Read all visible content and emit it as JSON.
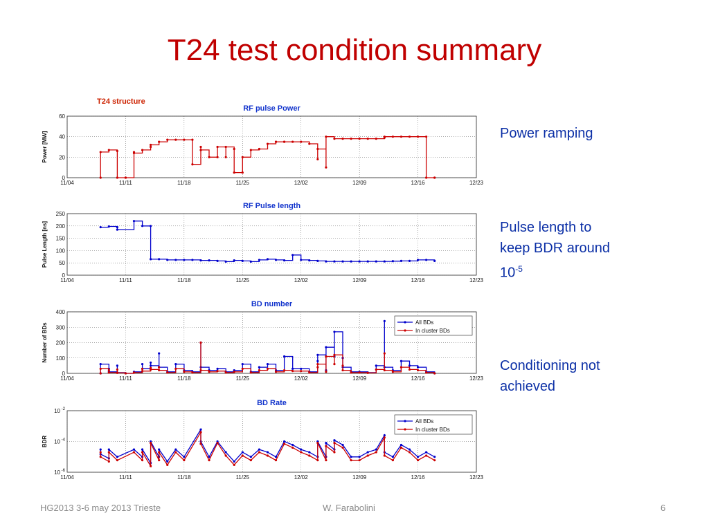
{
  "slide": {
    "title": "T24 test condition summary",
    "structure_label": "T24 structure",
    "notes": {
      "power": "Power ramping",
      "pulse_line1": "Pulse length to",
      "pulse_line2": "keep BDR around",
      "pulse_base": "10",
      "pulse_exp": "-5",
      "cond_line1": "Conditioning not",
      "cond_line2": "achieved"
    },
    "footer": {
      "left": "HG2013 3-6 may 2013 Trieste",
      "center": "W. Farabolini",
      "right": "6"
    }
  },
  "chart_data": [
    {
      "type": "line",
      "title": "RF pulse Power",
      "ylabel": "Power [MW]",
      "xlim": [
        "11/04",
        "12/23"
      ],
      "ylim": [
        0,
        60
      ],
      "yticks": [
        0,
        20,
        40,
        60
      ],
      "xticks": [
        "11/04",
        "11/11",
        "11/18",
        "11/25",
        "12/02",
        "12/09",
        "12/16",
        "12/23"
      ],
      "grid": true,
      "series": [
        {
          "color": "#cc0000",
          "x": [
            "11/08",
            "11/08",
            "11/09",
            "11/10",
            "11/10",
            "11/11",
            "11/11",
            "11/12",
            "11/12",
            "11/13",
            "11/14",
            "11/14",
            "11/15",
            "11/16",
            "11/17",
            "11/18",
            "11/19",
            "11/19",
            "11/20",
            "11/20",
            "11/21",
            "11/22",
            "11/22",
            "11/23",
            "11/23",
            "11/24",
            "11/24",
            "11/25",
            "11/25",
            "11/26",
            "11/27",
            "11/28",
            "11/29",
            "11/29",
            "11/30",
            "11/30",
            "12/01",
            "12/02",
            "12/03",
            "12/04",
            "12/04",
            "12/05",
            "12/05",
            "12/06",
            "12/07",
            "12/08",
            "12/09",
            "12/10",
            "12/11",
            "12/12",
            "12/12",
            "12/13",
            "12/14",
            "12/15",
            "12/16",
            "12/17",
            "12/17",
            "12/18",
            "12/18"
          ],
          "y": [
            0,
            25,
            27,
            26,
            0,
            0,
            0,
            25,
            24,
            27,
            30,
            32,
            35,
            37,
            37,
            37,
            37,
            13,
            30,
            27,
            20,
            20,
            30,
            20,
            30,
            28,
            5,
            5,
            20,
            27,
            28,
            33,
            35,
            35,
            35,
            35,
            35,
            35,
            33,
            18,
            28,
            10,
            40,
            38,
            38,
            38,
            38,
            38,
            38,
            39,
            40,
            40,
            40,
            40,
            40,
            40,
            0,
            0,
            0
          ]
        }
      ]
    },
    {
      "type": "line",
      "title": "RF Pulse length",
      "ylabel": "Pulse Length [ns]",
      "xlim": [
        "11/04",
        "12/23"
      ],
      "ylim": [
        0,
        250
      ],
      "yticks": [
        0,
        50,
        100,
        150,
        200,
        250
      ],
      "xticks": [
        "11/04",
        "11/11",
        "11/18",
        "11/25",
        "12/02",
        "12/09",
        "12/16",
        "12/23"
      ],
      "grid": true,
      "series": [
        {
          "color": "#0000cc",
          "x": [
            "11/08",
            "11/09",
            "11/10",
            "11/10",
            "11/12",
            "11/13",
            "11/14",
            "11/14",
            "11/15",
            "11/16",
            "11/17",
            "11/18",
            "11/19",
            "11/20",
            "11/21",
            "11/22",
            "11/23",
            "11/24",
            "11/25",
            "11/26",
            "11/27",
            "11/28",
            "11/29",
            "11/30",
            "12/01",
            "12/02",
            "12/03",
            "12/04",
            "12/05",
            "12/06",
            "12/07",
            "12/08",
            "12/09",
            "12/10",
            "12/11",
            "12/12",
            "12/13",
            "12/14",
            "12/15",
            "12/16",
            "12/17",
            "12/18"
          ],
          "y": [
            195,
            198,
            195,
            185,
            220,
            200,
            200,
            65,
            65,
            62,
            62,
            62,
            62,
            60,
            60,
            58,
            55,
            60,
            58,
            55,
            62,
            65,
            62,
            60,
            82,
            62,
            60,
            58,
            56,
            56,
            56,
            56,
            56,
            56,
            56,
            56,
            57,
            58,
            58,
            62,
            62,
            58
          ]
        }
      ]
    },
    {
      "type": "line",
      "title": "BD number",
      "ylabel": "Number of BDs",
      "xlim": [
        "11/04",
        "12/23"
      ],
      "ylim": [
        0,
        400
      ],
      "yticks": [
        0,
        100,
        200,
        300,
        400
      ],
      "xticks": [
        "11/04",
        "11/11",
        "11/18",
        "11/25",
        "12/02",
        "12/09",
        "12/16",
        "12/23"
      ],
      "grid": true,
      "legend": "top-right",
      "series": [
        {
          "name": "All BDs",
          "color": "#0000cc",
          "x": [
            "11/08",
            "11/08",
            "11/09",
            "11/09",
            "11/10",
            "11/10",
            "11/11",
            "11/12",
            "11/13",
            "11/13",
            "11/14",
            "11/14",
            "11/15",
            "11/15",
            "11/16",
            "11/17",
            "11/18",
            "11/19",
            "11/20",
            "11/20",
            "11/21",
            "11/22",
            "11/23",
            "11/24",
            "11/25",
            "11/26",
            "11/27",
            "11/28",
            "11/29",
            "11/30",
            "12/01",
            "12/02",
            "12/03",
            "12/04",
            "12/04",
            "12/05",
            "12/05",
            "12/06",
            "12/06",
            "12/07",
            "12/07",
            "12/08",
            "12/09",
            "12/10",
            "12/11",
            "12/12",
            "12/12",
            "12/13",
            "12/14",
            "12/15",
            "12/16",
            "12/17",
            "12/18"
          ],
          "y": [
            0,
            60,
            30,
            10,
            50,
            5,
            0,
            10,
            60,
            30,
            70,
            50,
            130,
            40,
            10,
            60,
            20,
            10,
            200,
            40,
            20,
            30,
            10,
            20,
            60,
            10,
            40,
            60,
            20,
            110,
            30,
            30,
            10,
            80,
            120,
            20,
            170,
            110,
            270,
            100,
            40,
            10,
            10,
            5,
            50,
            340,
            40,
            20,
            80,
            50,
            40,
            10,
            0
          ]
        },
        {
          "name": "In cluster BDs",
          "color": "#cc0000",
          "x": [
            "11/08",
            "11/08",
            "11/09",
            "11/09",
            "11/10",
            "11/10",
            "11/11",
            "11/12",
            "11/13",
            "11/13",
            "11/14",
            "11/14",
            "11/15",
            "11/15",
            "11/16",
            "11/17",
            "11/18",
            "11/19",
            "11/20",
            "11/20",
            "11/21",
            "11/22",
            "11/23",
            "11/24",
            "11/25",
            "11/26",
            "11/27",
            "11/28",
            "11/29",
            "11/30",
            "12/01",
            "12/02",
            "12/03",
            "12/04",
            "12/04",
            "12/05",
            "12/05",
            "12/06",
            "12/06",
            "12/07",
            "12/07",
            "12/08",
            "12/09",
            "12/10",
            "12/11",
            "12/12",
            "12/12",
            "12/13",
            "12/14",
            "12/15",
            "12/16",
            "12/17",
            "12/18"
          ],
          "y": [
            0,
            30,
            20,
            5,
            25,
            3,
            0,
            5,
            30,
            15,
            35,
            25,
            40,
            20,
            5,
            30,
            10,
            5,
            200,
            20,
            10,
            15,
            5,
            10,
            30,
            5,
            20,
            30,
            10,
            20,
            15,
            15,
            5,
            40,
            60,
            10,
            110,
            60,
            120,
            50,
            20,
            5,
            5,
            3,
            25,
            130,
            20,
            10,
            40,
            25,
            20,
            5,
            0
          ]
        }
      ]
    },
    {
      "type": "line",
      "title": "BD Rate",
      "ylabel": "BDR",
      "yscale": "log",
      "xlim": [
        "11/04",
        "12/23"
      ],
      "ylim": [
        1e-06,
        0.01
      ],
      "ytick_labels": [
        {
          "base": "10",
          "exp": "-2",
          "value": 0.01
        },
        {
          "base": "10",
          "exp": "-4",
          "value": 0.0001
        },
        {
          "base": "10",
          "exp": "-6",
          "value": 1e-06
        }
      ],
      "xticks": [
        "11/04",
        "11/11",
        "11/18",
        "11/25",
        "12/02",
        "12/09",
        "12/16",
        "12/23"
      ],
      "grid": true,
      "legend": "top-right",
      "series": [
        {
          "name": "All BDs",
          "color": "#0000cc",
          "x": [
            "11/08",
            "11/08",
            "11/09",
            "11/09",
            "11/10",
            "11/12",
            "11/13",
            "11/13",
            "11/14",
            "11/14",
            "11/15",
            "11/15",
            "11/16",
            "11/17",
            "11/18",
            "11/20",
            "11/20",
            "11/21",
            "11/22",
            "11/23",
            "11/24",
            "11/25",
            "11/26",
            "11/27",
            "11/28",
            "11/29",
            "11/30",
            "12/01",
            "12/02",
            "12/03",
            "12/04",
            "12/04",
            "12/05",
            "12/05",
            "12/06",
            "12/06",
            "12/07",
            "12/08",
            "12/09",
            "12/10",
            "12/11",
            "12/12",
            "12/12",
            "12/13",
            "12/14",
            "12/15",
            "12/16",
            "12/17",
            "12/18"
          ],
          "y": [
            3e-05,
            1.5e-05,
            8e-06,
            3e-05,
            1e-05,
            3e-05,
            1e-05,
            3e-05,
            4e-06,
            0.0001,
            1e-05,
            3e-05,
            5e-06,
            3e-05,
            1e-05,
            0.0006,
            0.0001,
            1e-05,
            0.0001,
            2e-05,
            5e-06,
            2e-05,
            1e-05,
            3e-05,
            2e-05,
            1e-05,
            0.0001,
            6e-05,
            3e-05,
            2e-05,
            1e-05,
            0.0001,
            1e-05,
            8e-05,
            3e-05,
            0.00012,
            6e-05,
            1e-05,
            1e-05,
            2e-05,
            3e-05,
            0.00025,
            2e-05,
            1e-05,
            6e-05,
            3e-05,
            1e-05,
            2e-05,
            1e-05
          ]
        },
        {
          "name": "In cluster BDs",
          "color": "#cc0000",
          "x": [
            "11/08",
            "11/08",
            "11/09",
            "11/09",
            "11/10",
            "11/12",
            "11/13",
            "11/13",
            "11/14",
            "11/14",
            "11/15",
            "11/15",
            "11/16",
            "11/17",
            "11/18",
            "11/20",
            "11/20",
            "11/21",
            "11/22",
            "11/23",
            "11/24",
            "11/25",
            "11/26",
            "11/27",
            "11/28",
            "11/29",
            "11/30",
            "12/01",
            "12/02",
            "12/03",
            "12/04",
            "12/04",
            "12/05",
            "12/05",
            "12/06",
            "12/06",
            "12/07",
            "12/08",
            "12/09",
            "12/10",
            "12/11",
            "12/12",
            "12/12",
            "12/13",
            "12/14",
            "12/15",
            "12/16",
            "12/17",
            "12/18"
          ],
          "y": [
            2e-05,
            1e-05,
            5e-06,
            2e-05,
            6e-06,
            2e-05,
            6e-06,
            2e-05,
            2.5e-06,
            8e-05,
            6e-06,
            2e-05,
            3e-06,
            2e-05,
            6e-06,
            0.0004,
            7e-05,
            6e-06,
            8e-05,
            1.2e-05,
            3e-06,
            1.2e-05,
            6e-06,
            2e-05,
            1.2e-05,
            6e-06,
            7e-05,
            4e-05,
            2e-05,
            1.2e-05,
            6e-06,
            8e-05,
            6e-06,
            5e-05,
            2e-05,
            8e-05,
            4e-05,
            6e-06,
            6e-06,
            1.2e-05,
            2e-05,
            0.00018,
            1.2e-05,
            6e-06,
            4e-05,
            2e-05,
            6e-06,
            1.2e-05,
            6e-06
          ]
        }
      ]
    }
  ]
}
